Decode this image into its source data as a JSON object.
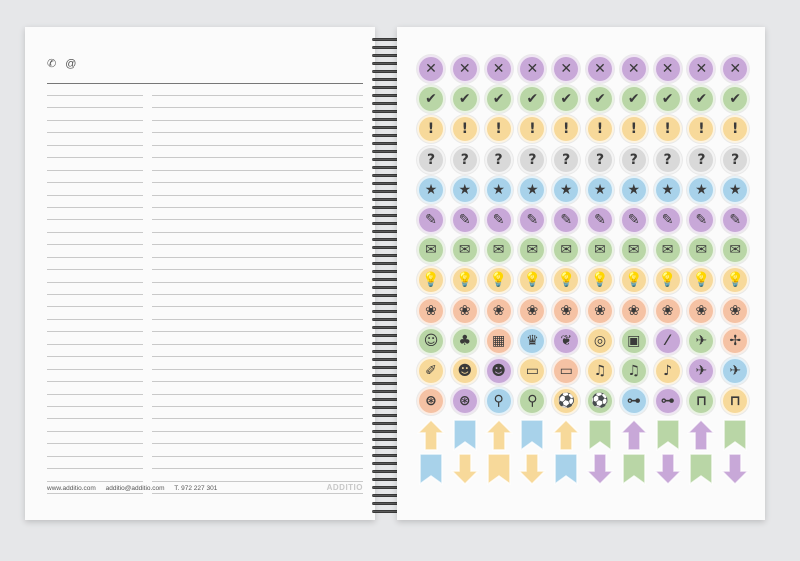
{
  "left_page": {
    "contact_icons": [
      "phone-icon",
      "at-icon"
    ],
    "footer": {
      "website": "www.additio.com",
      "email": "additio@additio.com",
      "phone": "T. 972 227 301"
    },
    "brand": "ADDITIO"
  },
  "right_page": {
    "sticker_colors": {
      "purple": "#c8a8d8",
      "green": "#b9d6a6",
      "yellow": "#f7d99a",
      "gray": "#d9d9d9",
      "blue": "#a8d2ea",
      "orange": "#f5c2a4"
    },
    "rows": [
      {
        "color": "purple",
        "icon": "close-icon",
        "glyph": "✕"
      },
      {
        "color": "green",
        "icon": "check-icon",
        "glyph": "✔"
      },
      {
        "color": "yellow",
        "icon": "exclamation-icon",
        "glyph": "!"
      },
      {
        "color": "gray",
        "icon": "question-icon",
        "glyph": "?"
      },
      {
        "color": "blue",
        "icon": "star-icon",
        "glyph": "★"
      },
      {
        "color": "purple",
        "icon": "pencil-icon",
        "glyph": "✎"
      },
      {
        "color": "green",
        "icon": "envelope-icon",
        "glyph": "✉"
      },
      {
        "color": "yellow",
        "icon": "lightbulb-icon",
        "glyph": "💡"
      },
      {
        "color": "orange",
        "icon": "paw-icon",
        "glyph": "❀"
      }
    ],
    "mixed_rows": [
      [
        {
          "color": "green",
          "icon": "pumpkin-icon",
          "glyph": "☺"
        },
        {
          "color": "green",
          "icon": "tree-icon",
          "glyph": "♣"
        },
        {
          "color": "orange",
          "icon": "pattern-icon",
          "glyph": "▦"
        },
        {
          "color": "blue",
          "icon": "crown-icon",
          "glyph": "♛"
        },
        {
          "color": "purple",
          "icon": "mask-icon",
          "glyph": "❦"
        },
        {
          "color": "yellow",
          "icon": "egg-icon",
          "glyph": "◎"
        },
        {
          "color": "green",
          "icon": "book-icon",
          "glyph": "▣"
        },
        {
          "color": "purple",
          "icon": "wand-icon",
          "glyph": "⁄"
        },
        {
          "color": "green",
          "icon": "plane-icon",
          "glyph": "✈"
        },
        {
          "color": "orange",
          "icon": "sign-icon",
          "glyph": "✢"
        }
      ],
      [
        {
          "color": "yellow",
          "icon": "pen-icon",
          "glyph": "✐"
        },
        {
          "color": "yellow",
          "icon": "theater-icon",
          "glyph": "☻"
        },
        {
          "color": "purple",
          "icon": "theater-icon",
          "glyph": "☻"
        },
        {
          "color": "yellow",
          "icon": "ticket-icon",
          "glyph": "▭"
        },
        {
          "color": "orange",
          "icon": "ticket-icon",
          "glyph": "▭"
        },
        {
          "color": "yellow",
          "icon": "music-icon",
          "glyph": "♫"
        },
        {
          "color": "green",
          "icon": "music-icon",
          "glyph": "♫"
        },
        {
          "color": "yellow",
          "icon": "guitar-icon",
          "glyph": "♪"
        },
        {
          "color": "purple",
          "icon": "airplane-icon",
          "glyph": "✈"
        },
        {
          "color": "blue",
          "icon": "airplane-icon",
          "glyph": "✈"
        }
      ],
      [
        {
          "color": "orange",
          "icon": "basketball-icon",
          "glyph": "⊛"
        },
        {
          "color": "purple",
          "icon": "basketball-icon",
          "glyph": "⊛"
        },
        {
          "color": "blue",
          "icon": "bicycle-icon",
          "glyph": "⚲"
        },
        {
          "color": "green",
          "icon": "bicycle-icon",
          "glyph": "⚲"
        },
        {
          "color": "yellow",
          "icon": "soccer-icon",
          "glyph": "⚽"
        },
        {
          "color": "green",
          "icon": "soccer-icon",
          "glyph": "⚽"
        },
        {
          "color": "blue",
          "icon": "dumbbell-icon",
          "glyph": "⊶"
        },
        {
          "color": "purple",
          "icon": "dumbbell-icon",
          "glyph": "⊶"
        },
        {
          "color": "green",
          "icon": "backpack-icon",
          "glyph": "⊓"
        },
        {
          "color": "yellow",
          "icon": "backpack-icon",
          "glyph": "⊓"
        }
      ]
    ],
    "arrows": [
      {
        "color": "yellow",
        "type": "up-arrow-icon"
      },
      {
        "color": "blue",
        "type": "ribbon-icon"
      },
      {
        "color": "yellow",
        "type": "up-arrow-icon"
      },
      {
        "color": "blue",
        "type": "ribbon-icon"
      },
      {
        "color": "yellow",
        "type": "up-arrow-icon"
      },
      {
        "color": "green",
        "type": "ribbon-icon"
      },
      {
        "color": "purple",
        "type": "up-arrow-icon"
      },
      {
        "color": "green",
        "type": "ribbon-icon"
      },
      {
        "color": "purple",
        "type": "up-arrow-icon"
      },
      {
        "color": "green",
        "type": "ribbon-icon"
      }
    ],
    "arrows_bottom": [
      {
        "color": "blue",
        "type": "ribbon-icon"
      },
      {
        "color": "yellow",
        "type": "down-arrow-icon"
      },
      {
        "color": "yellow",
        "type": "ribbon-icon"
      },
      {
        "color": "yellow",
        "type": "down-arrow-icon"
      },
      {
        "color": "blue",
        "type": "ribbon-icon"
      },
      {
        "color": "purple",
        "type": "down-arrow-icon"
      },
      {
        "color": "green",
        "type": "ribbon-icon"
      },
      {
        "color": "purple",
        "type": "down-arrow-icon"
      },
      {
        "color": "green",
        "type": "ribbon-icon"
      },
      {
        "color": "purple",
        "type": "down-arrow-icon"
      }
    ]
  }
}
